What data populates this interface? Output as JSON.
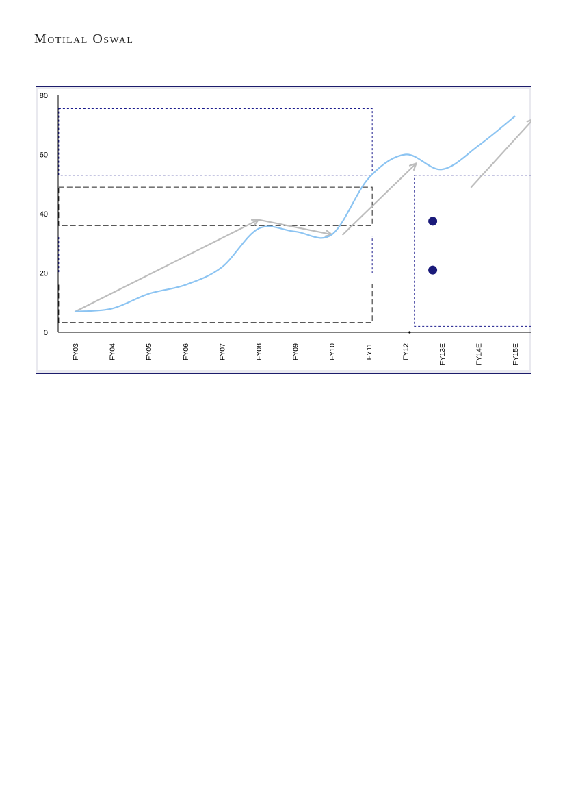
{
  "header": {
    "brand": "Motilal Oswal"
  },
  "colors": {
    "series": "#8cc4f2",
    "arrow": "#bdbdbd",
    "rule": "#1c1c6b",
    "marker": "#1a1a7a",
    "box_blue": "#1a1a8c",
    "box_black": "#222222",
    "frame_bg": "#e9e9ef"
  },
  "chart_data": {
    "type": "line",
    "categories": [
      "FY03",
      "FY04",
      "FY05",
      "FY06",
      "FY07",
      "FY08",
      "FY09",
      "FY10",
      "FY11",
      "FY12",
      "FY13E",
      "FY14E",
      "FY15E"
    ],
    "ylim": [
      0,
      80
    ],
    "y_ticks": [
      0,
      20,
      40,
      60,
      80
    ],
    "series": [
      {
        "values": [
          7,
          8,
          13,
          16,
          22,
          35,
          34,
          33,
          52,
          60,
          55,
          63,
          73
        ]
      }
    ],
    "trend_arrows": [
      {
        "from": [
          0,
          7
        ],
        "to": [
          5,
          38
        ]
      },
      {
        "from": [
          5,
          38
        ],
        "to": [
          7,
          33
        ]
      },
      {
        "from": [
          7.3,
          33
        ],
        "to": [
          9.3,
          57
        ]
      },
      {
        "from": [
          10.8,
          49
        ],
        "to": [
          12.5,
          72
        ]
      }
    ],
    "markers": [
      {
        "x": 9.75,
        "y": 37.5
      },
      {
        "x": 9.75,
        "y": 21
      }
    ],
    "annotation_boxes": [
      {
        "style": "blue",
        "x0": -0.45,
        "x1": 8.1,
        "y0": 53,
        "y1": 75.5
      },
      {
        "style": "black",
        "x0": -0.45,
        "x1": 8.1,
        "y0": 36,
        "y1": 49
      },
      {
        "style": "blue",
        "x0": -0.45,
        "x1": 8.1,
        "y0": 20,
        "y1": 32.5
      },
      {
        "style": "black",
        "x0": -0.45,
        "x1": 8.1,
        "y0": 3.3,
        "y1": 16.3
      },
      {
        "style": "blue",
        "x0": 9.25,
        "x1": 12.7,
        "y0": 2,
        "y1": 53
      }
    ]
  }
}
